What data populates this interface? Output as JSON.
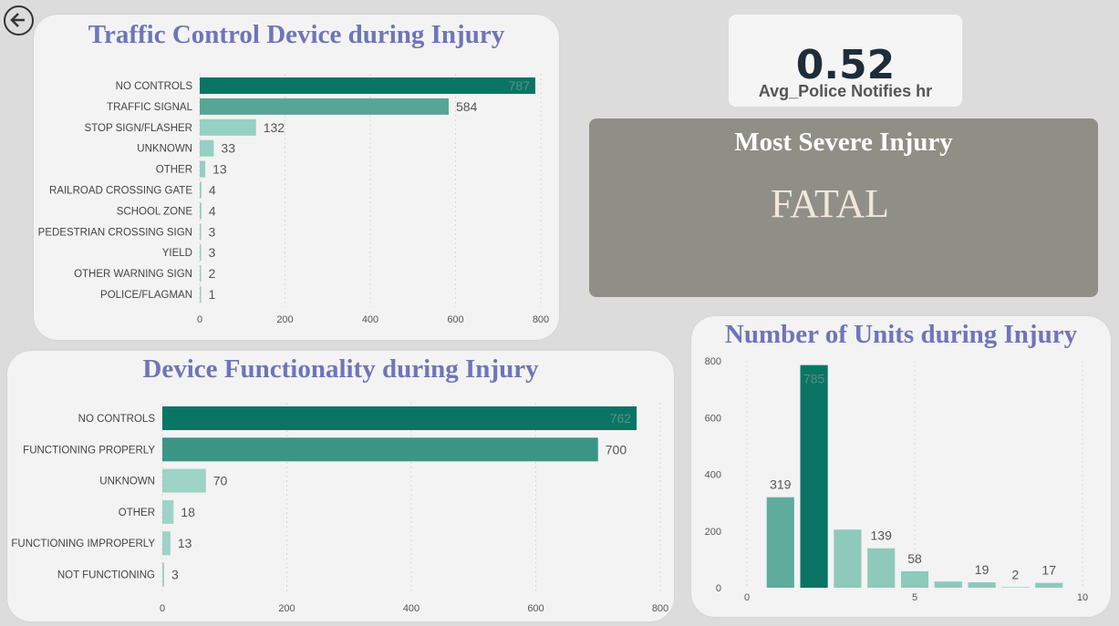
{
  "back_button_icon": "arrow-left-circle-icon",
  "kpi": {
    "value": "0.52",
    "label": "Avg_Police Notifies hr"
  },
  "severe": {
    "title": "Most Severe Injury",
    "value": "FATAL"
  },
  "chart_data": [
    {
      "id": "traffic-control",
      "type": "bar",
      "orientation": "horizontal",
      "title": "Traffic Control Device during Injury",
      "categories": [
        "NO CONTROLS",
        "TRAFFIC SIGNAL",
        "STOP SIGN/FLASHER",
        "UNKNOWN",
        "OTHER",
        "RAILROAD CROSSING GATE",
        "SCHOOL ZONE",
        "PEDESTRIAN CROSSING SIGN",
        "YIELD",
        "OTHER WARNING SIGN",
        "POLICE/FLAGMAN"
      ],
      "values": [
        787,
        584,
        132,
        33,
        13,
        4,
        4,
        3,
        3,
        2,
        1
      ],
      "xlim": [
        0,
        800
      ],
      "xticks": [
        0,
        200,
        400,
        600,
        800
      ],
      "colors": [
        "#0a7564",
        "#56a596",
        "#96cfc4",
        "#96cfc4",
        "#96cfc4",
        "#96cfc4",
        "#96cfc4",
        "#96cfc4",
        "#96cfc4",
        "#96cfc4",
        "#96cfc4"
      ],
      "grid": true
    },
    {
      "id": "device-functionality",
      "type": "bar",
      "orientation": "horizontal",
      "title": "Device Functionality during Injury",
      "categories": [
        "NO CONTROLS",
        "FUNCTIONING PROPERLY",
        "UNKNOWN",
        "OTHER",
        "FUNCTIONING IMPROPERLY",
        "NOT FUNCTIONING"
      ],
      "values": [
        762,
        700,
        70,
        18,
        13,
        3
      ],
      "xlim": [
        0,
        800
      ],
      "xticks": [
        0,
        200,
        400,
        600,
        800
      ],
      "colors": [
        "#0a7564",
        "#3a9585",
        "#9ed3c7",
        "#9ed3c7",
        "#9ed3c7",
        "#9ed3c7"
      ],
      "grid": true
    },
    {
      "id": "number-of-units",
      "type": "bar",
      "orientation": "vertical",
      "title": "Number of Units during Injury",
      "x": [
        1,
        2,
        3,
        4,
        5,
        6,
        7,
        8,
        9
      ],
      "values": [
        319,
        785,
        205,
        139,
        58,
        22,
        19,
        2,
        17
      ],
      "labels": [
        "319",
        "785",
        "",
        "139",
        "58",
        "",
        "19",
        "2",
        "17"
      ],
      "xlim": [
        0,
        10
      ],
      "xticks": [
        0,
        5,
        10
      ],
      "ylim": [
        0,
        800
      ],
      "yticks": [
        0,
        200,
        400,
        600,
        800
      ],
      "colors": [
        "#5fab9c",
        "#0a7564",
        "#8ec9bc",
        "#8ec9bc",
        "#8ec9bc",
        "#8ec9bc",
        "#8ec9bc",
        "#8ec9bc",
        "#8ec9bc"
      ],
      "grid": true
    }
  ]
}
